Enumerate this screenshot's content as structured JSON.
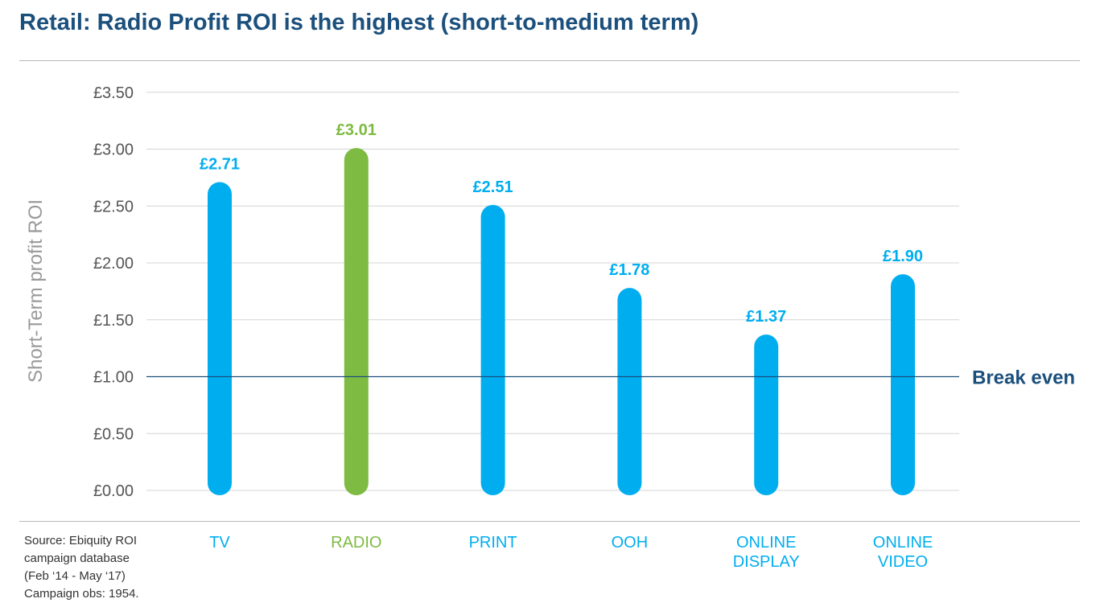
{
  "title": "Retail: Radio Profit ROI is the highest (short-to-medium term)",
  "source_lines": [
    "Source: Ebiquity ROI",
    "campaign database",
    "(Feb ‘14 - May ‘17)",
    "Campaign obs: 1954."
  ],
  "colors": {
    "title": "#1b4f7c",
    "default_bar": "#00aeef",
    "highlight_bar": "#7dbb42",
    "grid": "#d4d4d4",
    "axis_text": "#555555",
    "ylabel": "#999999",
    "break_even": "#1b4f7c"
  },
  "chart_data": {
    "type": "bar",
    "title": "Retail: Radio Profit ROI is the highest (short-to-medium term)",
    "ylabel": "Short-Term profit ROI",
    "xlabel": "",
    "ylim": [
      0,
      3.5
    ],
    "grid": true,
    "yticks": [
      0,
      0.5,
      1,
      1.5,
      2,
      2.5,
      3,
      3.5
    ],
    "ytick_labels": [
      "£0.00",
      "£0.50",
      "£1.00",
      "£1.50",
      "£2.00",
      "£2.50",
      "£3.00",
      "£3.50"
    ],
    "categories": [
      [
        "TV"
      ],
      [
        "RADIO"
      ],
      [
        "PRINT"
      ],
      [
        "OOH"
      ],
      [
        "ONLINE",
        "DISPLAY"
      ],
      [
        "ONLINE",
        "VIDEO"
      ]
    ],
    "values": [
      2.71,
      3.01,
      2.51,
      1.78,
      1.37,
      1.9
    ],
    "value_labels": [
      "£2.71",
      "£3.01",
      "£2.51",
      "£1.78",
      "£1.37",
      "£1.90"
    ],
    "highlight_index": 1,
    "reference_line": {
      "value": 1.0,
      "label": "Break even"
    }
  }
}
